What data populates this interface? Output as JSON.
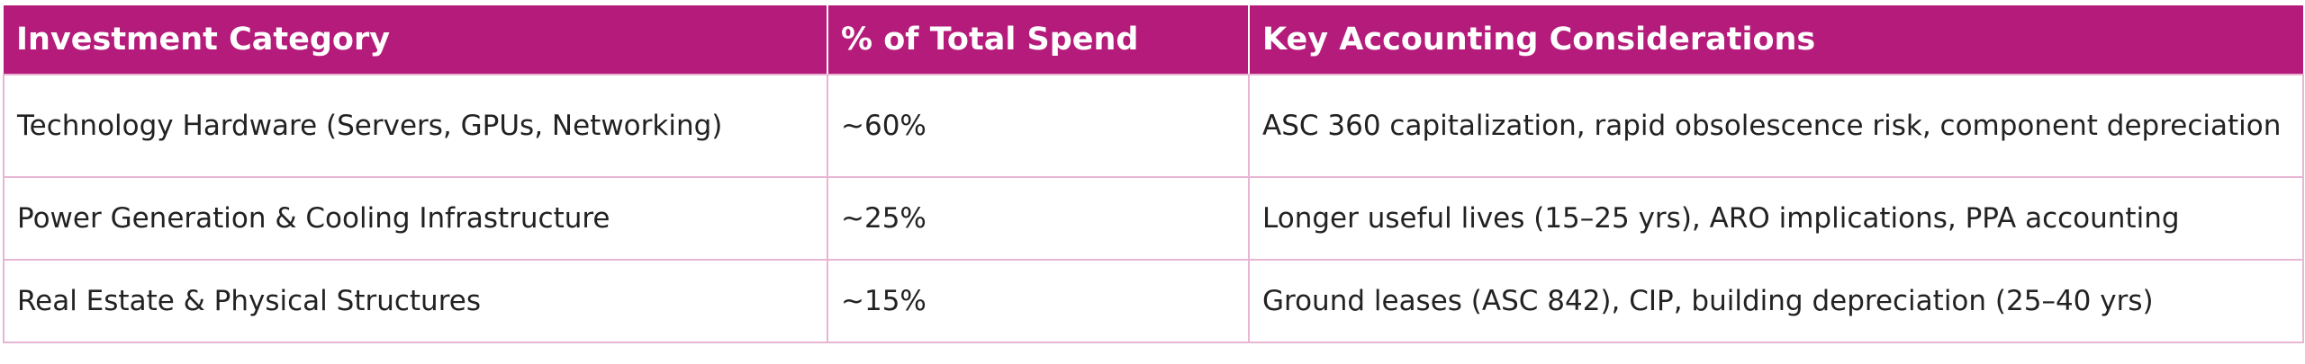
{
  "table": {
    "headers": [
      "Investment Category",
      "% of Total Spend",
      "Key Accounting Considerations"
    ],
    "rows": [
      {
        "category": "Technology Hardware (Servers, GPUs, Networking)",
        "spend": "~60%",
        "considerations": "ASC 360 capitalization, rapid obsolescence risk, component depreciation"
      },
      {
        "category": "Power Generation & Cooling Infrastructure",
        "spend": "~25%",
        "considerations": "Longer useful lives (15–25 yrs), ARO implications, PPA accounting"
      },
      {
        "category": "Real Estate & Physical Structures",
        "spend": "~15%",
        "considerations": "Ground leases (ASC 842), CIP, building depreciation (25–40 yrs)"
      }
    ]
  },
  "colors": {
    "header_background": "#b51b7a",
    "header_text": "#ffffff",
    "border": "#e7b6d3"
  }
}
